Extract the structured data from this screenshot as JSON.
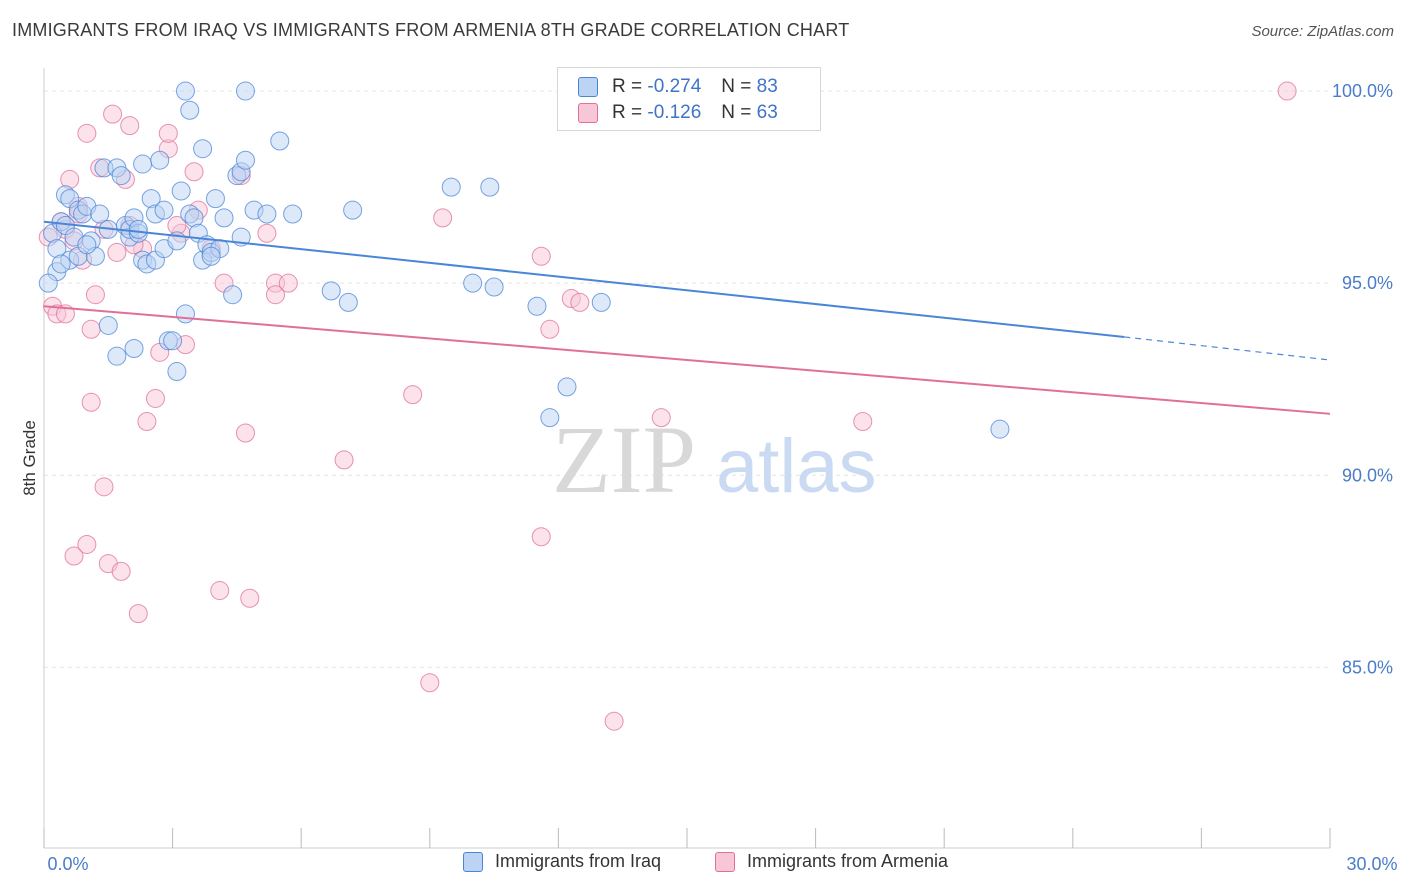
{
  "header": {
    "title": "IMMIGRANTS FROM IRAQ VS IMMIGRANTS FROM ARMENIA 8TH GRADE CORRELATION CHART",
    "source": "Source: ZipAtlas.com"
  },
  "watermark": {
    "zip": "ZIP",
    "atlas": "atlas"
  },
  "legend": {
    "rows": [
      {
        "r_label": "R =",
        "r_value": "-0.274",
        "n_label": "N =",
        "n_value": "83"
      },
      {
        "r_label": "R =",
        "r_value": "-0.126",
        "n_label": "N =",
        "n_value": "63"
      }
    ]
  },
  "colors": {
    "iraq": "#4a86d8",
    "iraq_fill": "#bcd3f3",
    "armenia": "#e0709a",
    "armenia_fill": "#f7c6d7",
    "tick_text": "#4a7cc9",
    "grid": "#e4e4e4"
  },
  "chart_data": {
    "type": "scatter",
    "title": "IMMIGRANTS FROM IRAQ VS IMMIGRANTS FROM ARMENIA 8TH GRADE CORRELATION CHART",
    "xlabel": "",
    "ylabel": "8th Grade",
    "xlim": [
      0,
      30
    ],
    "ylim": [
      80.3,
      100.6
    ],
    "x_tick_labels": [
      "0.0%",
      "30.0%"
    ],
    "y_ticks": [
      85,
      90,
      95,
      100
    ],
    "y_tick_labels": [
      "85.0%",
      "90.0%",
      "95.0%",
      "100.0%"
    ],
    "grid": true,
    "legend_position": "top-center",
    "series": [
      {
        "name": "Immigrants from Iraq",
        "r": -0.274,
        "n": 83,
        "trend": {
          "x": [
            0,
            25.2
          ],
          "y": [
            96.6,
            93.6
          ],
          "dashed_to": [
            30,
            93.0
          ]
        },
        "points": [
          [
            0.2,
            96.3
          ],
          [
            0.3,
            95.9
          ],
          [
            0.3,
            95.3
          ],
          [
            0.4,
            96.6
          ],
          [
            0.5,
            97.3
          ],
          [
            0.5,
            96.5
          ],
          [
            0.6,
            97.2
          ],
          [
            0.6,
            95.6
          ],
          [
            0.7,
            96.2
          ],
          [
            0.8,
            96.9
          ],
          [
            0.8,
            95.7
          ],
          [
            0.9,
            96.8
          ],
          [
            1.0,
            97.0
          ],
          [
            1.1,
            96.1
          ],
          [
            1.2,
            95.7
          ],
          [
            1.3,
            96.8
          ],
          [
            1.4,
            98.0
          ],
          [
            1.5,
            96.4
          ],
          [
            1.5,
            93.9
          ],
          [
            1.7,
            98.0
          ],
          [
            1.7,
            93.1
          ],
          [
            1.8,
            97.8
          ],
          [
            1.9,
            96.5
          ],
          [
            2.0,
            96.2
          ],
          [
            2.0,
            96.4
          ],
          [
            2.1,
            96.7
          ],
          [
            2.1,
            93.3
          ],
          [
            2.2,
            96.3
          ],
          [
            2.3,
            98.1
          ],
          [
            2.3,
            95.6
          ],
          [
            2.4,
            95.5
          ],
          [
            2.5,
            97.2
          ],
          [
            2.6,
            96.8
          ],
          [
            2.6,
            95.6
          ],
          [
            2.7,
            98.2
          ],
          [
            2.8,
            96.9
          ],
          [
            2.8,
            95.9
          ],
          [
            2.9,
            93.5
          ],
          [
            3.0,
            93.5
          ],
          [
            3.1,
            96.1
          ],
          [
            3.1,
            92.7
          ],
          [
            3.2,
            97.4
          ],
          [
            3.3,
            94.2
          ],
          [
            3.3,
            100.0
          ],
          [
            3.4,
            96.8
          ],
          [
            3.4,
            99.5
          ],
          [
            3.5,
            96.7
          ],
          [
            3.6,
            96.3
          ],
          [
            3.7,
            98.5
          ],
          [
            3.7,
            95.6
          ],
          [
            3.8,
            96.0
          ],
          [
            3.9,
            95.8
          ],
          [
            4.0,
            97.2
          ],
          [
            4.1,
            95.9
          ],
          [
            4.2,
            96.7
          ],
          [
            4.4,
            94.7
          ],
          [
            4.5,
            97.8
          ],
          [
            4.6,
            97.9
          ],
          [
            4.6,
            96.2
          ],
          [
            4.7,
            98.2
          ],
          [
            4.7,
            100.0
          ],
          [
            4.9,
            96.9
          ],
          [
            5.2,
            96.8
          ],
          [
            5.5,
            98.7
          ],
          [
            5.8,
            96.8
          ],
          [
            6.7,
            94.8
          ],
          [
            7.1,
            94.5
          ],
          [
            7.2,
            96.9
          ],
          [
            9.5,
            97.5
          ],
          [
            10.0,
            95.0
          ],
          [
            10.4,
            97.5
          ],
          [
            10.5,
            94.9
          ],
          [
            11.5,
            94.4
          ],
          [
            11.8,
            91.5
          ],
          [
            12.2,
            92.3
          ],
          [
            13.0,
            94.5
          ],
          [
            14.1,
            100.0
          ],
          [
            22.3,
            91.2
          ],
          [
            0.1,
            95.0
          ],
          [
            1.0,
            96.0
          ],
          [
            2.2,
            96.4
          ],
          [
            3.9,
            95.7
          ],
          [
            0.4,
            95.5
          ]
        ]
      },
      {
        "name": "Immigrants from Armenia",
        "r": -0.126,
        "n": 63,
        "trend": {
          "x": [
            0,
            30
          ],
          "y": [
            94.4,
            91.6
          ]
        },
        "points": [
          [
            0.1,
            96.2
          ],
          [
            0.2,
            94.4
          ],
          [
            0.3,
            94.2
          ],
          [
            0.4,
            96.6
          ],
          [
            0.5,
            96.4
          ],
          [
            0.5,
            94.2
          ],
          [
            0.6,
            97.7
          ],
          [
            0.7,
            96.1
          ],
          [
            0.7,
            87.9
          ],
          [
            0.8,
            97.0
          ],
          [
            0.9,
            95.6
          ],
          [
            1.0,
            98.9
          ],
          [
            1.0,
            88.2
          ],
          [
            1.1,
            91.9
          ],
          [
            1.1,
            93.8
          ],
          [
            1.2,
            94.7
          ],
          [
            1.3,
            98.0
          ],
          [
            1.4,
            96.4
          ],
          [
            1.4,
            89.7
          ],
          [
            1.5,
            87.7
          ],
          [
            1.6,
            99.4
          ],
          [
            1.7,
            95.8
          ],
          [
            1.8,
            87.5
          ],
          [
            1.9,
            97.7
          ],
          [
            2.0,
            96.5
          ],
          [
            2.0,
            99.1
          ],
          [
            2.2,
            86.4
          ],
          [
            2.3,
            95.9
          ],
          [
            2.4,
            91.4
          ],
          [
            2.6,
            92.0
          ],
          [
            2.7,
            93.2
          ],
          [
            2.9,
            98.5
          ],
          [
            2.9,
            98.9
          ],
          [
            3.2,
            96.3
          ],
          [
            3.3,
            93.4
          ],
          [
            3.5,
            97.9
          ],
          [
            3.6,
            96.9
          ],
          [
            3.9,
            95.9
          ],
          [
            4.1,
            87.0
          ],
          [
            4.2,
            95.0
          ],
          [
            4.6,
            97.8
          ],
          [
            4.7,
            91.1
          ],
          [
            4.8,
            86.8
          ],
          [
            5.2,
            96.3
          ],
          [
            5.4,
            95.0
          ],
          [
            5.4,
            94.7
          ],
          [
            5.7,
            95.0
          ],
          [
            7.0,
            90.4
          ],
          [
            8.6,
            92.1
          ],
          [
            9.0,
            84.6
          ],
          [
            9.3,
            96.7
          ],
          [
            11.6,
            88.4
          ],
          [
            11.6,
            95.7
          ],
          [
            11.8,
            93.8
          ],
          [
            12.3,
            94.6
          ],
          [
            12.5,
            94.5
          ],
          [
            13.3,
            83.6
          ],
          [
            14.4,
            91.5
          ],
          [
            19.1,
            91.4
          ],
          [
            29.0,
            100.0
          ],
          [
            0.8,
            96.8
          ],
          [
            2.1,
            96.0
          ],
          [
            3.1,
            96.5
          ]
        ]
      }
    ]
  },
  "bottom_legend": {
    "items": [
      {
        "label": "Immigrants from Iraq"
      },
      {
        "label": "Immigrants from Armenia"
      }
    ]
  }
}
